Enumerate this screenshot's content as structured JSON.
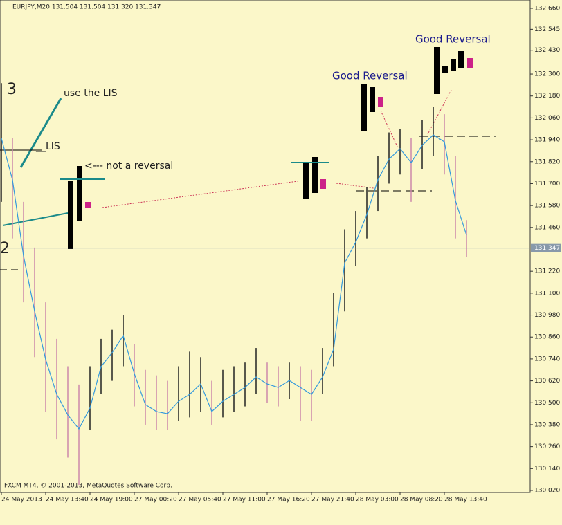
{
  "chart_data": {
    "type": "bar",
    "header": "EURJPY,M20  131.504 131.504 131.320 131.347",
    "footer": "FXCM MT4, © 2001-2013, MetaQuotes Software Corp.",
    "annotations": [
      "3",
      "2",
      "use the LIS",
      "__LIS",
      "<--- not a reversal",
      "Good Reversal",
      "Good Reversal"
    ],
    "categories": [
      "24 May 2013",
      null,
      null,
      null,
      "24 May 13:40",
      null,
      null,
      null,
      "24 May 19:00",
      null,
      null,
      null,
      "27 May 00:20",
      null,
      null,
      null,
      "27 May 05:40",
      null,
      null,
      null,
      "27 May 11:00",
      null,
      null,
      null,
      "27 May 16:20",
      null,
      null,
      null,
      "27 May 21:40",
      null,
      null,
      null,
      "28 May 03:00",
      null,
      null,
      null,
      "28 May 08:20",
      null,
      null,
      null,
      "28 May 13:40",
      null,
      null
    ],
    "high": [
      132.25,
      131.95,
      131.6,
      131.35,
      131.05,
      130.85,
      130.7,
      130.6,
      130.7,
      130.85,
      130.9,
      130.98,
      130.82,
      130.68,
      130.65,
      130.62,
      130.7,
      130.78,
      130.75,
      130.62,
      130.68,
      130.7,
      130.72,
      130.8,
      130.72,
      130.7,
      130.72,
      130.7,
      130.68,
      130.8,
      131.1,
      131.45,
      131.55,
      131.68,
      131.85,
      131.98,
      132.0,
      131.95,
      132.05,
      132.12,
      132.08,
      131.85,
      131.5
    ],
    "low": [
      131.6,
      131.4,
      131.05,
      130.75,
      130.45,
      130.3,
      130.2,
      130.05,
      130.35,
      130.55,
      130.62,
      130.7,
      130.48,
      130.38,
      130.35,
      130.35,
      130.4,
      130.42,
      130.45,
      130.38,
      130.42,
      130.45,
      130.48,
      130.55,
      130.5,
      130.48,
      130.52,
      130.4,
      130.4,
      130.55,
      130.7,
      131.0,
      131.25,
      131.4,
      131.55,
      131.7,
      131.75,
      131.6,
      131.78,
      131.85,
      131.75,
      131.4,
      131.3
    ],
    "ma": [
      131.948,
      131.721,
      131.304,
      131.001,
      130.736,
      130.546,
      130.433,
      130.357,
      130.471,
      130.698,
      130.774,
      130.868,
      130.66,
      130.49,
      130.452,
      130.44,
      130.508,
      130.546,
      130.603,
      130.452,
      130.508,
      130.546,
      130.584,
      130.641,
      130.603,
      130.584,
      130.622,
      130.584,
      130.546,
      130.641,
      130.793,
      131.266,
      131.38,
      131.531,
      131.721,
      131.834,
      131.891,
      131.815,
      131.91,
      131.967,
      131.929,
      131.607,
      131.418
    ],
    "colors": {
      "up": "#222222",
      "down": "#cc88aa",
      "ma": "#3399dd",
      "price_line": "#8899aa"
    },
    "current_price": {
      "value": 131.347,
      "label": "131.347"
    },
    "ylim": [
      130.02,
      132.66
    ],
    "yticks": [
      {
        "value": 130.02,
        "label": "130.020"
      },
      {
        "value": 130.14,
        "label": "130.140"
      },
      {
        "value": 130.26,
        "label": "130.260"
      },
      {
        "value": 130.38,
        "label": "130.380"
      },
      {
        "value": 130.5,
        "label": "130.500"
      },
      {
        "value": 130.62,
        "label": "130.620"
      },
      {
        "value": 130.74,
        "label": "130.740"
      },
      {
        "value": 130.86,
        "label": "130.860"
      },
      {
        "value": 130.98,
        "label": "130.980"
      },
      {
        "value": 131.1,
        "label": "131.100"
      },
      {
        "value": 131.22,
        "label": "131.220"
      },
      {
        "value": 131.46,
        "label": "131.460"
      },
      {
        "value": 131.58,
        "label": "131.580"
      },
      {
        "value": 131.7,
        "label": "131.700"
      },
      {
        "value": 131.82,
        "label": "131.820"
      },
      {
        "value": 131.94,
        "label": "131.940"
      },
      {
        "value": 132.06,
        "label": "132.060"
      },
      {
        "value": 132.18,
        "label": "132.180"
      },
      {
        "value": 132.3,
        "label": "132.300"
      },
      {
        "value": 132.43,
        "label": "132.430"
      },
      {
        "value": 132.545,
        "label": "132.545"
      },
      {
        "value": 132.66,
        "label": "132.660"
      }
    ]
  }
}
